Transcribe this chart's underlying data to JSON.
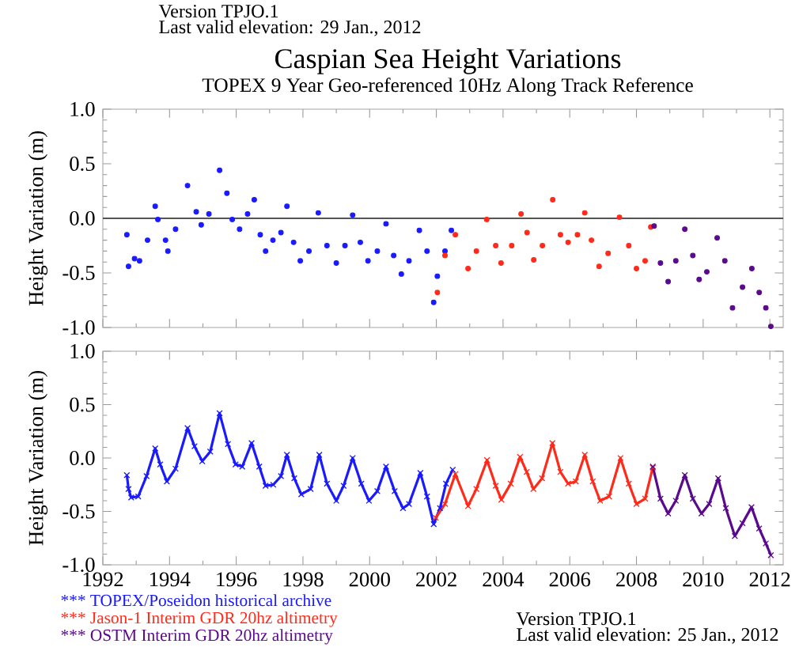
{
  "chart_data": [
    {
      "type": "scatter",
      "title": "Caspian Sea Height Variations",
      "subtitle": "TOPEX 9 Year Geo-referenced 10Hz Along Track Reference",
      "ylabel": "Height Variation (m)",
      "annotations": [
        "Version TPJO.1",
        "Last valid elevation: 29 Jan., 2012"
      ],
      "marker": "circle",
      "tick_labels": "y",
      "xlim": [
        1992,
        2012.4
      ],
      "ylim": [
        -1,
        1
      ],
      "xticks": [
        1992,
        1994,
        1996,
        1998,
        2000,
        2002,
        2004,
        2006,
        2008,
        2010,
        2012
      ],
      "yticks": [
        {
          "value": -1,
          "label": "-1.0"
        },
        {
          "value": -0.5,
          "label": "-0.5"
        },
        {
          "value": 0,
          "label": "0.0"
        },
        {
          "value": 0.5,
          "label": "0.5"
        },
        {
          "value": 1,
          "label": "1.0"
        }
      ],
      "ref_lines": [
        {
          "axis": "y",
          "value": 0,
          "color": "#555555"
        }
      ],
      "series": [
        {
          "color": "#1a1aff",
          "x": [
            1992.72,
            1992.77,
            1992.95,
            1993.1,
            1993.34,
            1993.57,
            1993.65,
            1993.88,
            1993.95,
            1994.18,
            1994.54,
            1994.8,
            1994.95,
            1995.18,
            1995.5,
            1995.72,
            1995.88,
            1996.1,
            1996.34,
            1996.54,
            1996.72,
            1996.88,
            1997.1,
            1997.34,
            1997.52,
            1997.72,
            1997.92,
            1998.18,
            1998.46,
            1998.72,
            1999.0,
            1999.26,
            1999.49,
            1999.72,
            1999.95,
            2000.23,
            2000.49,
            2000.72,
            2000.95,
            2001.18,
            2001.49,
            2001.72,
            2001.92,
            2002.03,
            2002.26,
            2002.45
          ],
          "values": [
            -0.15,
            -0.44,
            -0.37,
            -0.39,
            -0.2,
            0.11,
            -0.01,
            -0.2,
            -0.3,
            -0.1,
            0.3,
            0.06,
            -0.06,
            0.04,
            0.44,
            0.23,
            -0.01,
            -0.1,
            0.04,
            0.17,
            -0.15,
            -0.3,
            -0.2,
            -0.13,
            0.11,
            -0.22,
            -0.39,
            -0.3,
            0.05,
            -0.25,
            -0.41,
            -0.25,
            0.03,
            -0.22,
            -0.39,
            -0.3,
            -0.05,
            -0.34,
            -0.51,
            -0.39,
            -0.11,
            -0.3,
            -0.77,
            -0.53,
            -0.3,
            -0.11
          ]
        },
        {
          "color": "#ff2a1a",
          "x": [
            2002.03,
            2002.26,
            2002.57,
            2002.95,
            2003.2,
            2003.51,
            2003.78,
            2003.94,
            2004.26,
            2004.54,
            2004.72,
            2004.92,
            2005.18,
            2005.49,
            2005.72,
            2005.95,
            2006.23,
            2006.45,
            2006.65,
            2006.88,
            2007.15,
            2007.49,
            2007.77,
            2008.0,
            2008.26,
            2008.43
          ],
          "values": [
            -0.68,
            -0.34,
            -0.15,
            -0.46,
            -0.3,
            -0.01,
            -0.25,
            -0.41,
            -0.25,
            0.04,
            -0.13,
            -0.38,
            -0.25,
            0.17,
            -0.15,
            -0.22,
            -0.15,
            0.05,
            -0.2,
            -0.44,
            -0.32,
            0.01,
            -0.25,
            -0.46,
            -0.39,
            -0.08
          ]
        },
        {
          "color": "#5a0a8c",
          "x": [
            2008.53,
            2008.72,
            2008.95,
            2009.18,
            2009.45,
            2009.69,
            2009.88,
            2010.11,
            2010.42,
            2010.65,
            2010.88,
            2011.18,
            2011.46,
            2011.68,
            2011.88,
            2012.03
          ],
          "values": [
            -0.07,
            -0.41,
            -0.58,
            -0.39,
            -0.1,
            -0.34,
            -0.56,
            -0.49,
            -0.18,
            -0.39,
            -0.82,
            -0.63,
            -0.46,
            -0.68,
            -0.82,
            -0.99
          ]
        }
      ]
    },
    {
      "type": "line",
      "ylabel": "Height Variation (m)",
      "annotations": [
        "Version TPJO.1",
        "Last valid elevation: 25 Jan., 2012"
      ],
      "marker": "cross",
      "line_style": "solid",
      "legend": "bottom left",
      "xlim": [
        1992,
        2012.4
      ],
      "ylim": [
        -1,
        1
      ],
      "xticks": [
        1992,
        1994,
        1996,
        1998,
        2000,
        2002,
        2004,
        2006,
        2008,
        2010,
        2012
      ],
      "yticks": [
        {
          "value": -1,
          "label": "-1.0"
        },
        {
          "value": -0.5,
          "label": "-0.5"
        },
        {
          "value": 0,
          "label": "0.0"
        },
        {
          "value": 0.5,
          "label": "0.5"
        },
        {
          "value": 1,
          "label": "1.0"
        }
      ],
      "series": [
        {
          "name": "*** TOPEX/Poseidon historical archive",
          "color": "#1a1aff",
          "x": [
            1992.72,
            1992.77,
            1992.85,
            1993.06,
            1993.31,
            1993.57,
            1993.72,
            1993.92,
            1994.18,
            1994.54,
            1994.75,
            1994.98,
            1995.22,
            1995.5,
            1995.75,
            1995.98,
            1996.18,
            1996.46,
            1996.69,
            1996.88,
            1997.11,
            1997.34,
            1997.52,
            1997.74,
            1997.95,
            1998.23,
            1998.49,
            1998.72,
            1999.0,
            1999.22,
            1999.49,
            1999.75,
            1999.98,
            2000.23,
            2000.49,
            2000.75,
            2001.0,
            2001.18,
            2001.52,
            2001.72,
            2001.92,
            2002.11,
            2002.29,
            2002.49
          ],
          "values": [
            -0.16,
            -0.29,
            -0.37,
            -0.36,
            -0.17,
            0.09,
            -0.06,
            -0.22,
            -0.1,
            0.28,
            0.11,
            -0.03,
            0.06,
            0.42,
            0.13,
            -0.06,
            -0.08,
            0.14,
            -0.08,
            -0.26,
            -0.25,
            -0.17,
            0.03,
            -0.19,
            -0.34,
            -0.29,
            0.03,
            -0.24,
            -0.4,
            -0.26,
            0.0,
            -0.24,
            -0.4,
            -0.31,
            -0.08,
            -0.31,
            -0.47,
            -0.43,
            -0.14,
            -0.36,
            -0.62,
            -0.47,
            -0.24,
            -0.11
          ]
        },
        {
          "name": "*** Jason-1 Interim GDR 20hz altimetry",
          "color": "#ff2a1a",
          "x": [
            2001.98,
            2002.26,
            2002.57,
            2002.95,
            2003.2,
            2003.52,
            2003.78,
            2003.95,
            2004.23,
            2004.51,
            2004.71,
            2004.91,
            2005.17,
            2005.48,
            2005.72,
            2005.95,
            2006.18,
            2006.45,
            2006.69,
            2006.91,
            2007.18,
            2007.52,
            2007.77,
            2008.0,
            2008.26,
            2008.49
          ],
          "values": [
            -0.56,
            -0.43,
            -0.15,
            -0.45,
            -0.29,
            -0.02,
            -0.26,
            -0.39,
            -0.24,
            0.01,
            -0.13,
            -0.29,
            -0.19,
            0.14,
            -0.13,
            -0.24,
            -0.22,
            0.03,
            -0.22,
            -0.4,
            -0.36,
            0.0,
            -0.24,
            -0.43,
            -0.38,
            -0.09
          ]
        },
        {
          "name": "*** OSTM  Interim GDR 20hz altimetry",
          "color": "#5a0a8c",
          "x": [
            2008.49,
            2008.72,
            2008.95,
            2009.18,
            2009.45,
            2009.69,
            2009.95,
            2010.18,
            2010.45,
            2010.68,
            2010.95,
            2011.18,
            2011.45,
            2011.68,
            2011.88,
            2012.03
          ],
          "values": [
            -0.08,
            -0.38,
            -0.52,
            -0.4,
            -0.16,
            -0.38,
            -0.52,
            -0.43,
            -0.19,
            -0.47,
            -0.73,
            -0.61,
            -0.46,
            -0.66,
            -0.8,
            -0.91
          ]
        }
      ]
    }
  ]
}
